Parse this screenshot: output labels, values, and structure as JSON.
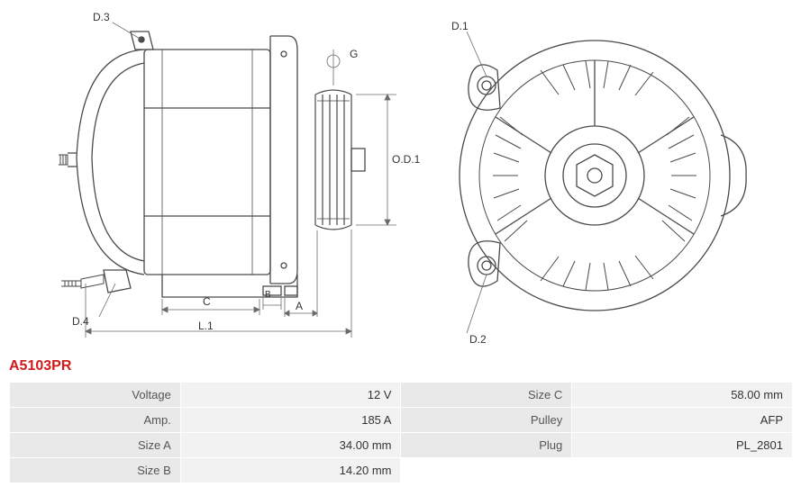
{
  "part_number": "A5103PR",
  "part_number_color": "#d11a1a",
  "diagram": {
    "stroke": "#4a4a4a",
    "stroke_width": 1.2,
    "thin_stroke": "#6a6a6a",
    "label_fontsize": 12,
    "labels": {
      "D3": "D.3",
      "D4": "D.4",
      "D1": "D.1",
      "D2": "D.2",
      "G": "G",
      "OD1": "O.D.1",
      "L1": "L.1",
      "C": "C",
      "A": "A",
      "B": "B"
    }
  },
  "specs": {
    "rows": [
      {
        "l1": "Voltage",
        "v1": "12 V",
        "l2": "Size C",
        "v2": "58.00 mm"
      },
      {
        "l1": "Amp.",
        "v1": "185 A",
        "l2": "Pulley",
        "v2": "AFP"
      },
      {
        "l1": "Size A",
        "v1": "34.00 mm",
        "l2": "Plug",
        "v2": "PL_2801"
      },
      {
        "l1": "Size B",
        "v1": "14.20 mm",
        "l2": "",
        "v2": ""
      }
    ]
  }
}
